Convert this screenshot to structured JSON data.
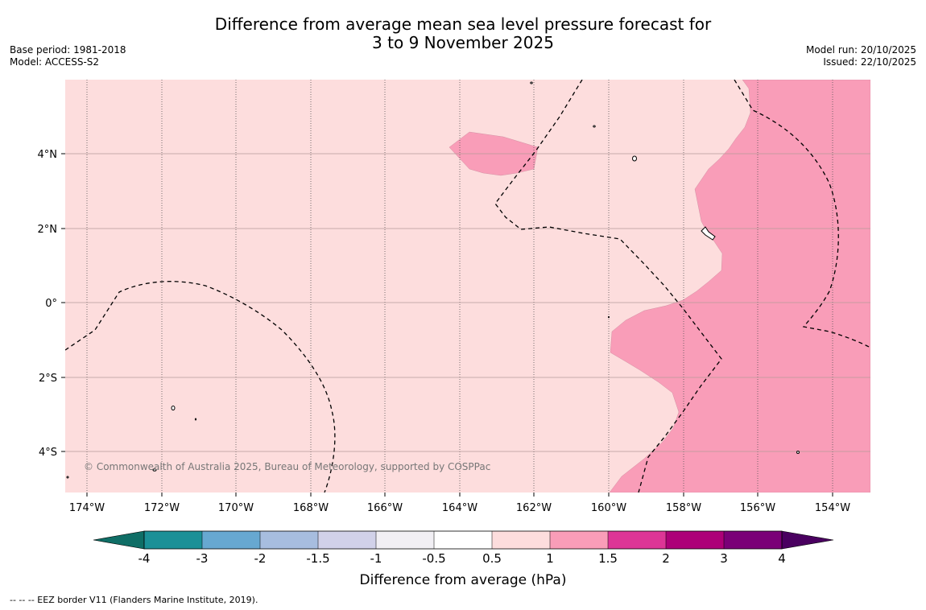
{
  "header": {
    "title_line1": "Difference from average mean sea level pressure forecast for",
    "title_line2": "3 to 9 November 2025",
    "base_period": "Base period: 1981-2018",
    "model": "Model: ACCESS-S2",
    "model_run": "Model run: 20/10/2025",
    "issued": "Issued: 22/10/2025"
  },
  "map": {
    "copyright": "© Commonwealth of Australia 2025, Bureau of Meteorology, supported by COSPPac",
    "lon_labels": [
      "174°W",
      "172°W",
      "170°W",
      "168°W",
      "166°W",
      "164°W",
      "162°W",
      "160°W",
      "158°W",
      "156°W",
      "154°W"
    ],
    "lat_labels": [
      "4°N",
      "2°N",
      "0°",
      "2°S",
      "4°S"
    ],
    "colors": {
      "light_pink": "#fddddd",
      "pink": "#f99db8"
    }
  },
  "colorbar": {
    "label": "Difference from average (hPa)",
    "ticks": [
      "-4",
      "-3",
      "-2",
      "-1.5",
      "-1",
      "-0.5",
      "0.5",
      "1",
      "1.5",
      "2",
      "3",
      "4"
    ],
    "colors": [
      "#0f6e66",
      "#1b9097",
      "#67a8d1",
      "#a7bddf",
      "#d1d1e9",
      "#f1eff4",
      "#ffffff",
      "#fddddd",
      "#f99db8",
      "#dd3596",
      "#ad0078",
      "#7a0077",
      "#4a0060"
    ]
  },
  "footnote": "--  --  -- EEZ border V11 (Flanders Marine Institute, 2019)."
}
